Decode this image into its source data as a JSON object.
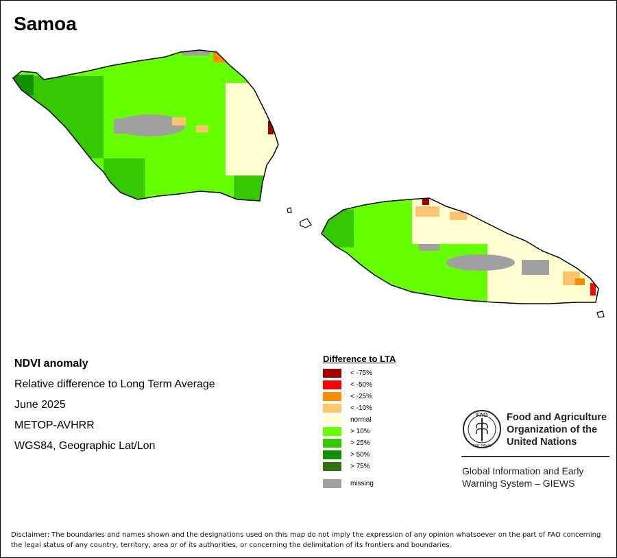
{
  "title": "Samoa",
  "info": {
    "heading": "NDVI anomaly",
    "subtitle": "Relative difference to Long Term Average",
    "period": "June 2025",
    "sensor": "METOP-AVHRR",
    "projection": "WGS84, Geographic Lat/Lon"
  },
  "legend": {
    "title": "Difference to LTA",
    "items": [
      {
        "label": "< -75%",
        "color": "#a00000"
      },
      {
        "label": "< -50%",
        "color": "#ff0000"
      },
      {
        "label": "< -25%",
        "color": "#ff8c00"
      },
      {
        "label": "< -10%",
        "color": "#ffc46e"
      },
      {
        "label": "normal",
        "color": "#ffffd2"
      },
      {
        "label": "> 10%",
        "color": "#66ff00"
      },
      {
        "label": "> 25%",
        "color": "#33c800"
      },
      {
        "label": "> 50%",
        "color": "#119100"
      },
      {
        "label": "> 75%",
        "color": "#2f7010"
      },
      {
        "label": "missing",
        "color": "#a0a0a0"
      }
    ]
  },
  "org": {
    "line1": "Food and Agriculture",
    "line2": "Organization of the",
    "line3": "United Nations",
    "system1": "Global Information and Early",
    "system2": "Warning System – GIEWS",
    "logo_text": "FAO",
    "logo_motto": "FIAT PANIS"
  },
  "disclaimer": "Disclaimer: The boundaries and names shown and the designations used on this map do not imply the expression of any opinion whatsoever on the part of FAO concerning the legal status of any country, territory, area or of its authorities, or concerning the delimitation of its frontiers and boundaries.",
  "colors": {
    "green_light": "#66ff00",
    "green_mid": "#33c800",
    "green_dark": "#119100",
    "green_darkest": "#2f7010",
    "normal": "#ffffd2",
    "neg10": "#ffc46e",
    "neg25": "#ff8c00",
    "neg50": "#ff0000",
    "neg75": "#a00000",
    "missing": "#a0a0a0"
  }
}
